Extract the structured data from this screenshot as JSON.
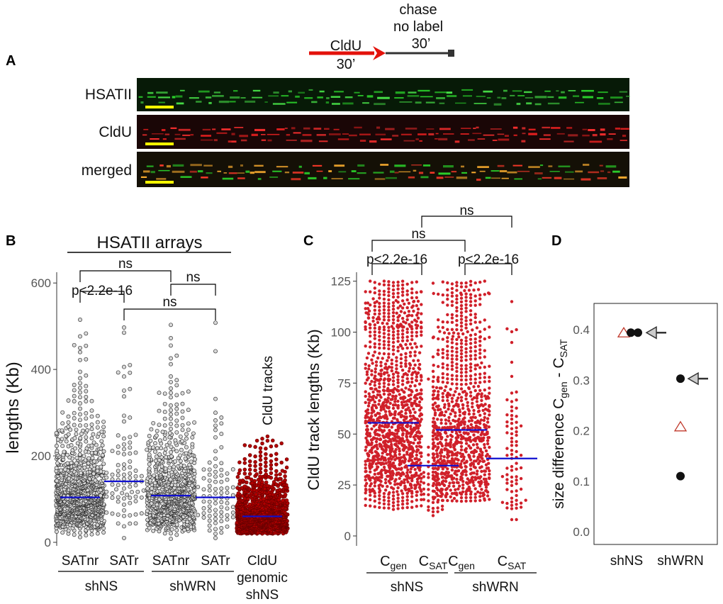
{
  "panels": {
    "a": "A",
    "b": "B",
    "c": "C",
    "d": "D"
  },
  "schematic": {
    "pulse_label": "CldU",
    "pulse_time": "30’",
    "chase_line1": "chase",
    "chase_line2": "no label",
    "chase_time": "30’",
    "colors": {
      "pulse": "#e3120b",
      "chase": "#333333"
    }
  },
  "fiber_images": {
    "rows": [
      {
        "label": "HSATII",
        "channel": "green"
      },
      {
        "label": "CldU",
        "channel": "red"
      },
      {
        "label": "merged",
        "channel": "merged"
      }
    ],
    "scale_bar_color": "#ffff00"
  },
  "chart_data": [
    {
      "panel": "B",
      "type": "scatter",
      "title": "HSATII arrays",
      "ylabel": "lengths (Kb)",
      "ylim": [
        0,
        620
      ],
      "yticks": [
        0,
        200,
        400,
        600
      ],
      "categories": [
        "SATnr",
        "SATr",
        "SATnr",
        "SATr",
        "CldU genomic shNS"
      ],
      "category_lines": [
        [
          "SATnr"
        ],
        [
          "SATr"
        ],
        [
          "SATnr"
        ],
        [
          "SATr"
        ],
        [
          "CldU",
          "genomic",
          "shNS"
        ]
      ],
      "groups": [
        "shNS",
        "shWRN"
      ],
      "annotation": "CldU tracks",
      "series": [
        {
          "category": "SATnr",
          "group": "shNS",
          "median": 104,
          "min": 12,
          "max": 515,
          "n": 1100
        },
        {
          "category": "SATr",
          "group": "shNS",
          "median": 141,
          "min": 10,
          "max": 497,
          "n": 90
        },
        {
          "category": "SATnr",
          "group": "shWRN",
          "median": 108,
          "min": 8,
          "max": 503,
          "n": 850
        },
        {
          "category": "SATr",
          "group": "shWRN",
          "median": 104,
          "min": 10,
          "max": 508,
          "n": 85
        },
        {
          "category": "CldU genomic shNS",
          "group": "",
          "median": 60,
          "min": 20,
          "max": 245,
          "n": 1300
        }
      ],
      "comparisons": [
        {
          "a": 0,
          "b": 1,
          "label": "p<2.2e-16"
        },
        {
          "a": 0,
          "b": 2,
          "label": "ns"
        },
        {
          "a": 2,
          "b": 3,
          "label": "ns"
        },
        {
          "a": 1,
          "b": 3,
          "label": "ns"
        }
      ],
      "colors": {
        "points_gray": "#d9d9d9",
        "points_red": "#b30000",
        "median": "#1010d0"
      }
    },
    {
      "panel": "C",
      "type": "scatter",
      "ylabel": "CldU track lengths (Kb)",
      "ylim": [
        0,
        128
      ],
      "yticks": [
        0,
        25,
        50,
        75,
        100,
        125
      ],
      "categories": [
        "Cgen",
        "CSAT",
        "Cgen",
        "CSAT"
      ],
      "category_parts": [
        [
          "C",
          "gen"
        ],
        [
          "C",
          "SAT"
        ],
        [
          "C",
          "gen"
        ],
        [
          "C",
          "SAT"
        ]
      ],
      "groups": [
        "shNS",
        "shWRN"
      ],
      "series": [
        {
          "category": "Cgen",
          "group": "shNS",
          "median": 55.5,
          "min": 13,
          "max": 125,
          "n": 1200
        },
        {
          "category": "CSAT",
          "group": "shNS",
          "median": 34.5,
          "min": 10,
          "max": 124,
          "n": 85
        },
        {
          "category": "Cgen",
          "group": "shWRN",
          "median": 52,
          "min": 17,
          "max": 125,
          "n": 900
        },
        {
          "category": "CSAT",
          "group": "shWRN",
          "median": 38,
          "min": 8,
          "max": 115,
          "n": 80
        }
      ],
      "comparisons": [
        {
          "a": 0,
          "b": 1,
          "label": "p<2.2e-16"
        },
        {
          "a": 2,
          "b": 3,
          "label": "p<2.2e-16"
        },
        {
          "a": 0,
          "b": 2,
          "label": "ns"
        },
        {
          "a": 1,
          "b": 3,
          "label": "ns"
        }
      ],
      "colors": {
        "points": "#d0202a",
        "median": "#1010d0"
      }
    },
    {
      "panel": "D",
      "type": "scatter",
      "ylabel": "size difference Cgen - CSAT",
      "ylabel_parts": [
        [
          "size difference C",
          ""
        ],
        [
          "gen",
          "sub"
        ],
        [
          " - C",
          ""
        ],
        [
          "SAT",
          "sub"
        ]
      ],
      "ylim": [
        -0.02,
        0.44
      ],
      "yticks": [
        0.0,
        0.1,
        0.2,
        0.3,
        0.4
      ],
      "yticklabels": [
        "0.0",
        "0.1",
        "0.2",
        "0.3",
        "0.4"
      ],
      "categories": [
        "shNS",
        "shWRN"
      ],
      "points": [
        {
          "category": "shNS",
          "value": 0.394,
          "marker": "triangle"
        },
        {
          "category": "shNS",
          "value": 0.394,
          "marker": "circle"
        },
        {
          "category": "shNS",
          "value": 0.394,
          "marker": "circle"
        },
        {
          "category": "shWRN",
          "value": 0.303,
          "marker": "circle"
        },
        {
          "category": "shWRN",
          "value": 0.208,
          "marker": "triangle"
        },
        {
          "category": "shWRN",
          "value": 0.11,
          "marker": "circle"
        }
      ],
      "arrows": [
        {
          "category": "shNS",
          "value": 0.394
        },
        {
          "category": "shWRN",
          "value": 0.303
        }
      ],
      "colors": {
        "circle": "#111111",
        "triangle": "#c0392b",
        "arrow": "#cccccc"
      }
    }
  ]
}
